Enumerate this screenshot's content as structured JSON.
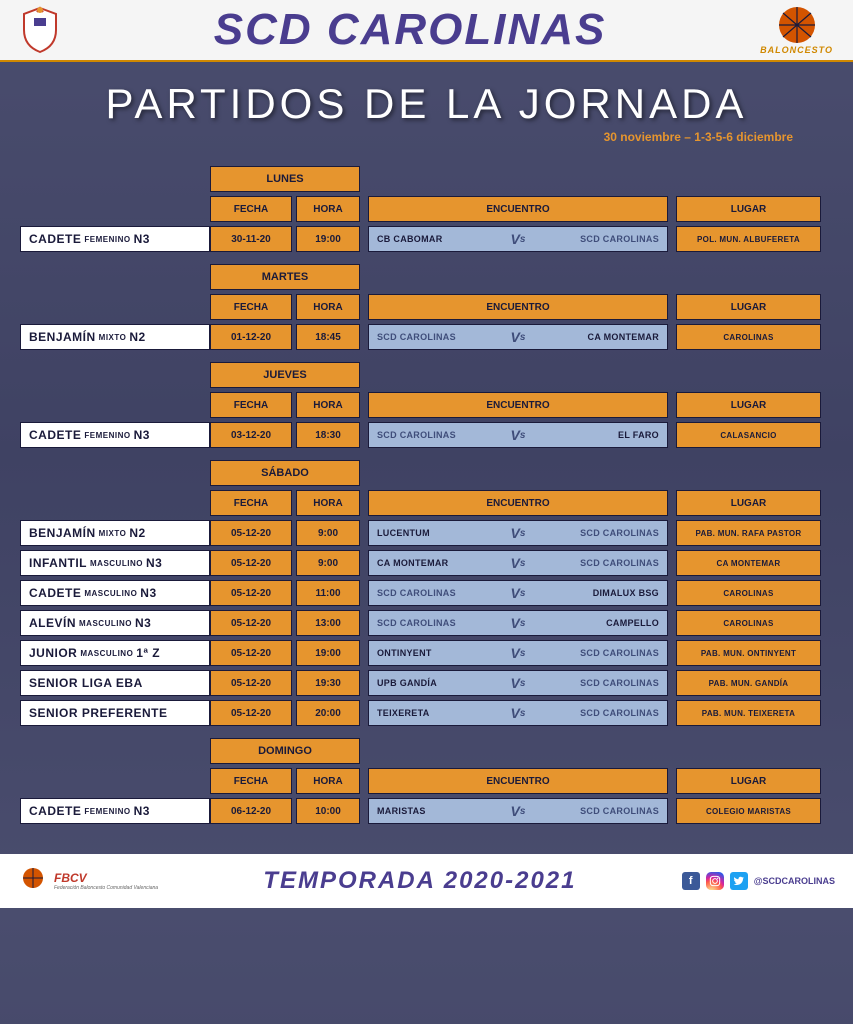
{
  "header": {
    "club_name": "SCD CAROLINAS",
    "subtitle": "BALONCESTO",
    "season_tag": "2020 - 2021"
  },
  "title": "PARTIDOS DE LA JORNADA",
  "date_range": "30 noviembre – 1-3-5-6 diciembre",
  "columns": {
    "fecha": "FECHA",
    "hora": "HORA",
    "encuentro": "ENCUENTRO",
    "lugar": "LUGAR"
  },
  "vs": "Vs",
  "scd_team": "SCD CAROLINAS",
  "colors": {
    "orange": "#e6952e",
    "blue_light": "#a3b8d8",
    "navy": "#1a1a3a",
    "bg_top": "#4a4d6e",
    "header_title": "#4a3d8f",
    "white": "#ffffff"
  },
  "days": [
    {
      "day": "LUNES",
      "matches": [
        {
          "cat_main": "CADETE",
          "cat_sub": "FEMENINO",
          "cat_level": "N3",
          "fecha": "30-11-20",
          "hora": "19:00",
          "home": "CB CABOMAR",
          "away": "SCD CAROLINAS",
          "scd_is_away": true,
          "lugar": "POL. MUN. ALBUFERETA"
        }
      ]
    },
    {
      "day": "MARTES",
      "matches": [
        {
          "cat_main": "BENJAMÍN",
          "cat_sub": "MIXTO",
          "cat_level": "N2",
          "fecha": "01-12-20",
          "hora": "18:45",
          "home": "SCD CAROLINAS",
          "away": "CA MONTEMAR",
          "scd_is_away": false,
          "lugar": "CAROLINAS"
        }
      ]
    },
    {
      "day": "JUEVES",
      "matches": [
        {
          "cat_main": "CADETE",
          "cat_sub": "FEMENINO",
          "cat_level": "N3",
          "fecha": "03-12-20",
          "hora": "18:30",
          "home": "SCD CAROLINAS",
          "away": "EL FARO",
          "scd_is_away": false,
          "lugar": "CALASANCIO"
        }
      ]
    },
    {
      "day": "SÁBADO",
      "matches": [
        {
          "cat_main": "BENJAMÍN",
          "cat_sub": "MIXTO",
          "cat_level": "N2",
          "fecha": "05-12-20",
          "hora": "9:00",
          "home": "LUCENTUM",
          "away": "SCD CAROLINAS",
          "scd_is_away": true,
          "lugar": "PAB. MUN. RAFA PASTOR"
        },
        {
          "cat_main": "INFANTIL",
          "cat_sub": "MASCULINO",
          "cat_level": "N3",
          "fecha": "05-12-20",
          "hora": "9:00",
          "home": "CA MONTEMAR",
          "away": "SCD CAROLINAS",
          "scd_is_away": true,
          "lugar": "CA MONTEMAR"
        },
        {
          "cat_main": "CADETE",
          "cat_sub": "MASCULINO",
          "cat_level": "N3",
          "fecha": "05-12-20",
          "hora": "11:00",
          "home": "SCD CAROLINAS",
          "away": "DIMALUX BSG",
          "scd_is_away": false,
          "lugar": "CAROLINAS"
        },
        {
          "cat_main": "ALEVÍN",
          "cat_sub": "MASCULINO",
          "cat_level": "N3",
          "fecha": "05-12-20",
          "hora": "13:00",
          "home": "SCD CAROLINAS",
          "away": "CAMPELLO",
          "scd_is_away": false,
          "lugar": "CAROLINAS"
        },
        {
          "cat_main": "JUNIOR",
          "cat_sub": "MASCULINO",
          "cat_level": "1ª Z",
          "fecha": "05-12-20",
          "hora": "19:00",
          "home": "ONTINYENT",
          "away": "SCD CAROLINAS",
          "scd_is_away": true,
          "lugar": "PAB. MUN. ONTINYENT"
        },
        {
          "cat_main": "SENIOR LIGA EBA",
          "cat_sub": "",
          "cat_level": "",
          "fecha": "05-12-20",
          "hora": "19:30",
          "home": "UPB GANDÍA",
          "away": "SCD CAROLINAS",
          "scd_is_away": true,
          "lugar": "PAB. MUN. GANDÍA"
        },
        {
          "cat_main": "SENIOR PREFERENTE",
          "cat_sub": "",
          "cat_level": "",
          "fecha": "05-12-20",
          "hora": "20:00",
          "home": "TEIXERETA",
          "away": "SCD CAROLINAS",
          "scd_is_away": true,
          "lugar": "PAB. MUN. TEIXERETA"
        }
      ]
    },
    {
      "day": "DOMINGO",
      "matches": [
        {
          "cat_main": "CADETE",
          "cat_sub": "FEMENINO",
          "cat_level": "N3",
          "fecha": "06-12-20",
          "hora": "10:00",
          "home": "MARISTAS",
          "away": "SCD CAROLINAS",
          "scd_is_away": true,
          "lugar": "COLEGIO MARISTAS"
        }
      ]
    }
  ],
  "footer": {
    "federation": "FBCV",
    "federation_sub": "Federación Baloncesto Comunidad Valenciana",
    "season": "TEMPORADA 2020-2021",
    "handle": "@SCDCAROLINAS"
  }
}
